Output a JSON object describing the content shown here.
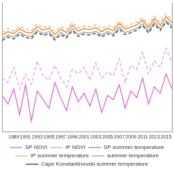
{
  "chart_data": {
    "type": "line",
    "categories": [
      null,
      null,
      1989,
      null,
      1991,
      null,
      1993,
      null,
      1995,
      null,
      1997,
      null,
      1999,
      null,
      2001,
      null,
      2003,
      null,
      2005,
      null,
      2007,
      null,
      2009,
      null,
      2011,
      null,
      2013,
      null,
      2015,
      null
    ],
    "ylim": [
      -10,
      16
    ],
    "y2lim": [
      0.25,
      0.85
    ],
    "tick_labels": "x",
    "grid": false,
    "legend": "bottom",
    "series": [
      {
        "name": "SP NDVI",
        "color": "#d36ad6",
        "line_style": "solid",
        "axis": "y2",
        "values": [
          0.42,
          0.38,
          0.45,
          0.33,
          0.47,
          0.3,
          0.44,
          0.4,
          0.36,
          0.48,
          0.41,
          0.35,
          0.46,
          0.39,
          0.43,
          0.37,
          0.45,
          0.34,
          0.42,
          0.4,
          0.47,
          0.36,
          0.44,
          0.41,
          0.5,
          0.38,
          0.46,
          0.43,
          0.52,
          0.45
        ]
      },
      {
        "name": "IP NDVI",
        "color": "#e39be6",
        "line_style": "dashed",
        "axis": "y2",
        "values": [
          0.5,
          0.48,
          0.55,
          0.45,
          0.52,
          0.47,
          0.58,
          0.51,
          0.49,
          0.56,
          0.5,
          0.46,
          0.54,
          0.52,
          0.55,
          0.49,
          0.57,
          0.5,
          0.53,
          0.51,
          0.59,
          0.48,
          0.56,
          0.54,
          0.62,
          0.52,
          0.58,
          0.55,
          0.64,
          0.57
        ]
      },
      {
        "name": "SP summer temperature",
        "color": "#e07b1a",
        "line_style": "solid",
        "values": [
          9.5,
          10.2,
          9.8,
          10.8,
          10.1,
          9.9,
          11.2,
          10.5,
          10.9,
          9.6,
          10.7,
          10.0,
          11.5,
          10.3,
          10.8,
          10.6,
          11.0,
          10.2,
          10.9,
          10.4,
          11.8,
          10.7,
          11.1,
          11.6,
          12.5,
          11.0,
          12.8,
          11.5,
          13.2,
          12.0
        ]
      },
      {
        "name": "IP summer temperature",
        "color": "#f0b06a",
        "line_style": "dashed",
        "values": [
          10.0,
          10.8,
          10.3,
          11.3,
          10.7,
          10.4,
          11.8,
          11.0,
          11.4,
          10.2,
          11.2,
          10.6,
          12.0,
          10.9,
          11.3,
          11.1,
          11.6,
          10.8,
          11.4,
          11.0,
          12.3,
          11.2,
          11.7,
          12.1,
          13.0,
          11.6,
          13.3,
          12.1,
          13.8,
          12.6
        ]
      },
      {
        "name": "summer temperature",
        "color": "#9a9a9a",
        "line_style": "solid",
        "values": [
          8.8,
          9.5,
          9.1,
          10.1,
          9.4,
          9.2,
          10.5,
          9.8,
          10.2,
          8.9,
          10.0,
          9.3,
          10.8,
          9.6,
          10.1,
          9.9,
          10.3,
          9.5,
          10.2,
          9.7,
          11.1,
          10.0,
          10.4,
          10.9,
          11.8,
          10.3,
          12.1,
          10.8,
          12.5,
          11.3
        ]
      },
      {
        "name": "Cape Konstantinovski summer temperature",
        "color": "#333333",
        "line_style": "dashed",
        "values": [
          8.4,
          9.1,
          8.7,
          9.7,
          9.0,
          8.8,
          10.1,
          9.4,
          9.8,
          8.5,
          9.6,
          8.9,
          10.4,
          9.2,
          9.7,
          9.5,
          9.9,
          9.1,
          9.8,
          9.3,
          10.7,
          9.6,
          10.0,
          10.5,
          11.4,
          9.9,
          11.7,
          10.4,
          12.1,
          10.9
        ]
      }
    ]
  }
}
